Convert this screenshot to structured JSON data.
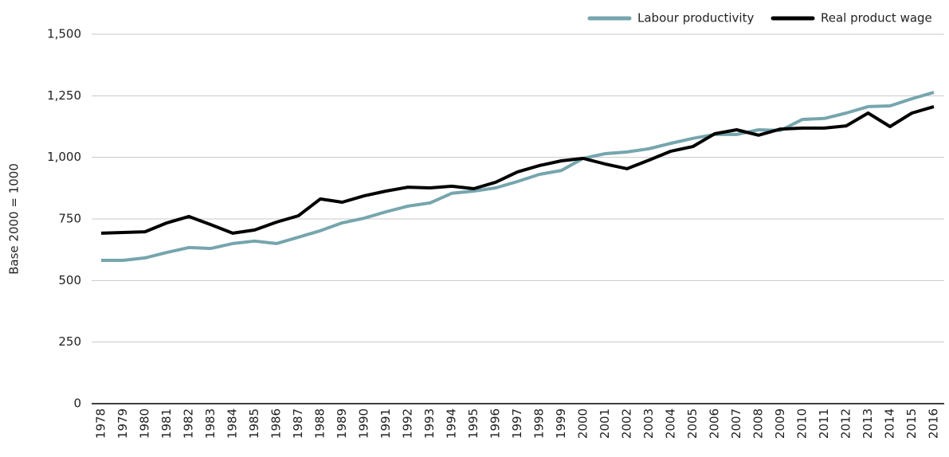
{
  "chart_data": {
    "type": "line",
    "y_label": "Base 2000 = 1000",
    "categories": [
      "1978",
      "1979",
      "1980",
      "1981",
      "1982",
      "1983",
      "1984",
      "1985",
      "1986",
      "1987",
      "1988",
      "1989",
      "1990",
      "1991",
      "1992",
      "1993",
      "1994",
      "1995",
      "1996",
      "1997",
      "1998",
      "1999",
      "2000",
      "2001",
      "2002",
      "2003",
      "2004",
      "2005",
      "2006",
      "2007",
      "2008",
      "2009",
      "2010",
      "2011",
      "2012",
      "2013",
      "2014",
      "2015",
      "2016"
    ],
    "series": [
      {
        "name": "Labour productivity",
        "color": "#76a5ad",
        "values": [
          582,
          582,
          592,
          614,
          634,
          630,
          650,
          660,
          650,
          676,
          702,
          734,
          753,
          779,
          802,
          815,
          854,
          863,
          876,
          902,
          931,
          947,
          996,
          1015,
          1022,
          1035,
          1057,
          1077,
          1093,
          1093,
          1112,
          1109,
          1154,
          1158,
          1180,
          1206,
          1209,
          1238,
          1264
        ]
      },
      {
        "name": "Real product wage",
        "color": "#000000",
        "values": [
          692,
          695,
          698,
          734,
          760,
          727,
          692,
          705,
          737,
          763,
          831,
          818,
          844,
          863,
          879,
          876,
          883,
          873,
          899,
          941,
          967,
          986,
          996,
          973,
          954,
          989,
          1025,
          1044,
          1096,
          1112,
          1090,
          1115,
          1119,
          1119,
          1128,
          1180,
          1125,
          1180,
          1206
        ]
      }
    ],
    "ylim": [
      0,
      1500
    ],
    "yticks": [
      0,
      250,
      500,
      750,
      {
        "value": 1000,
        "label": "1,000"
      },
      {
        "value": 1250,
        "label": "1,250"
      },
      {
        "value": 1500,
        "label": "1,500"
      }
    ],
    "grid": true,
    "legend": "top-right"
  }
}
